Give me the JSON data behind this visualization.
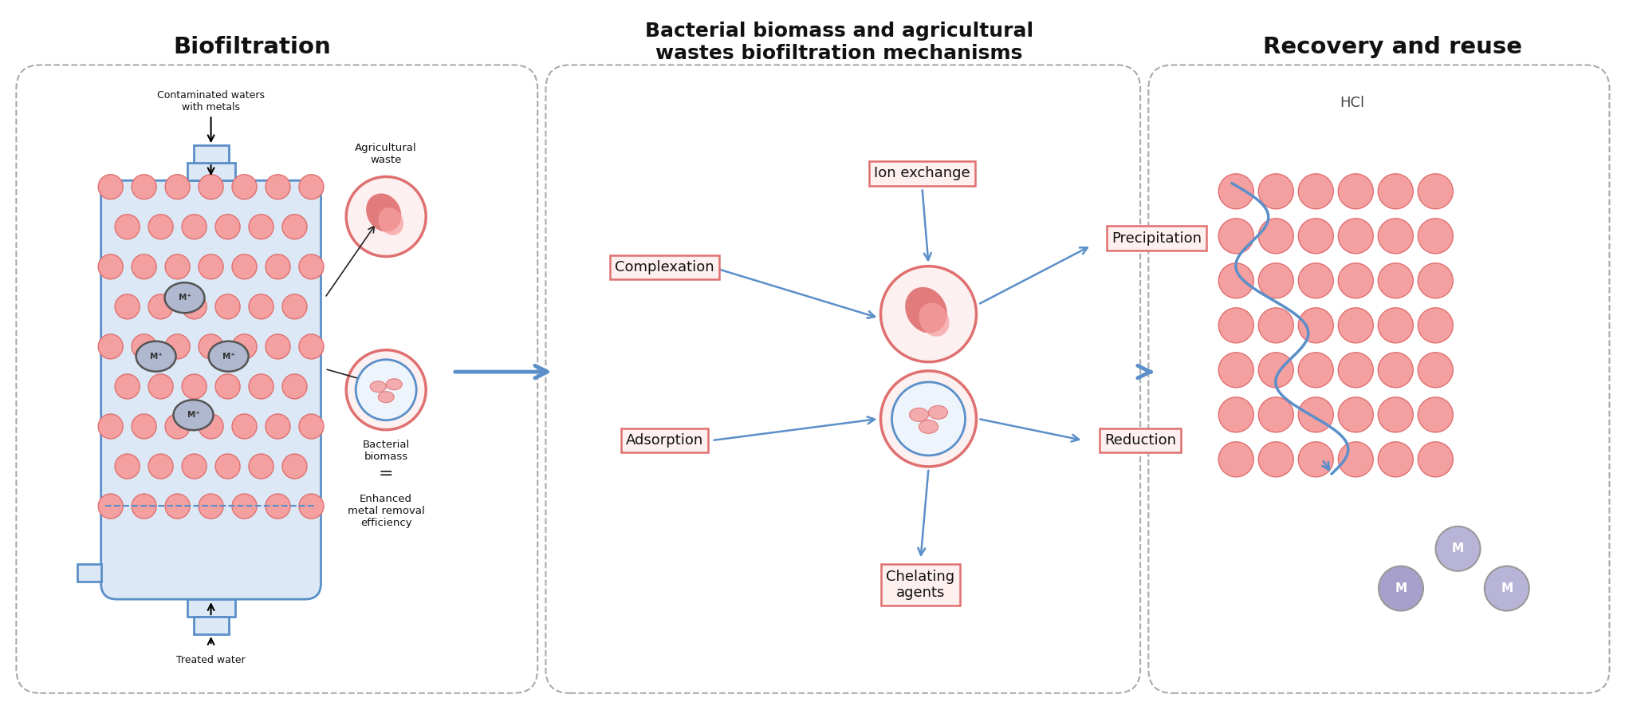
{
  "title_left": "Biofiltration",
  "title_mid": "Bacterial biomass and agricultural\nwastes biofiltration mechanisms",
  "title_right": "Recovery and reuse",
  "bg_color": "#ffffff",
  "salmon_color": "#f5a0a0",
  "salmon_edge": "#e07070",
  "salmon_light": "#fce8e8",
  "blue_color": "#5b8fc9",
  "blue_light": "#dce8f5",
  "gray_dash": "#aaaaaa",
  "fig_w": 20.43,
  "fig_h": 9.05,
  "dpi": 100
}
